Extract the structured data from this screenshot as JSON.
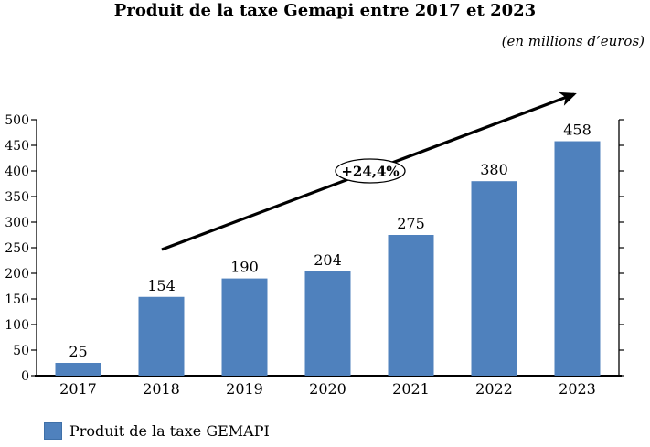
{
  "header": {
    "title": "Produit de la taxe Gemapi entre 2017 et 2023",
    "subtitle": "(en millions d’euros)"
  },
  "legend": {
    "label": "Produit de la taxe GEMAPI",
    "swatch_color": "#4F81BD"
  },
  "chart_data": {
    "type": "bar",
    "title": "Produit de la taxe Gemapi entre 2017 et 2023",
    "subtitle": "(en millions d’euros)",
    "categories": [
      "2017",
      "2018",
      "2019",
      "2020",
      "2021",
      "2022",
      "2023"
    ],
    "series": [
      {
        "name": "Produit de la taxe GEMAPI",
        "values": [
          25,
          154,
          190,
          204,
          275,
          380,
          458
        ]
      }
    ],
    "xlabel": "",
    "ylabel": "",
    "ylim": [
      0,
      500
    ],
    "ytick_step": 50,
    "grid": false,
    "legend_position": "bottom-left",
    "bar_color": "#4F81BD",
    "axis_color": "#000000",
    "text_color": "#000000",
    "annotation": {
      "type": "trend-arrow",
      "text": "+24,4%",
      "arrow_color": "#000000"
    }
  }
}
